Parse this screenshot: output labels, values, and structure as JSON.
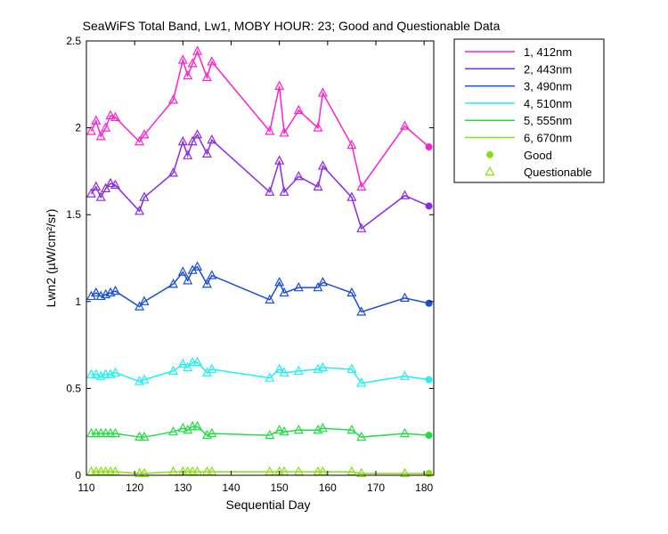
{
  "chart_data": {
    "type": "line",
    "title": "SeaWiFS Total Band, Lw1, MOBY HOUR: 23;  Good and Questionable Data",
    "xlabel": "Sequential Day",
    "ylabel": "Lwn2 (µW/cm²/sr)",
    "xlim": [
      110,
      182
    ],
    "ylim": [
      0,
      2.5
    ],
    "xticks": [
      "110",
      "120",
      "130",
      "140",
      "150",
      "160",
      "170",
      "180"
    ],
    "yticks": [
      "0",
      "0.5",
      "1",
      "1.5",
      "2",
      "2.5"
    ],
    "grid": false,
    "legend_position": "outside-top-right",
    "x": [
      111,
      112,
      113,
      114,
      115,
      116,
      121,
      122,
      128,
      130,
      131,
      132,
      133,
      135,
      136,
      148,
      150,
      151,
      154,
      158,
      159,
      165,
      167,
      176,
      181
    ],
    "series": [
      {
        "name": "1, 412nm",
        "color": "#ff22cc",
        "values": [
          1.98,
          2.04,
          1.95,
          2.0,
          2.07,
          2.06,
          1.92,
          1.96,
          2.16,
          2.39,
          2.3,
          2.37,
          2.44,
          2.29,
          2.38,
          1.98,
          2.24,
          1.97,
          2.1,
          2.0,
          2.2,
          1.9,
          1.66,
          2.01,
          1.89
        ]
      },
      {
        "name": "2, 443nm",
        "color": "#8a2be2",
        "values": [
          1.62,
          1.66,
          1.6,
          1.65,
          1.68,
          1.67,
          1.52,
          1.6,
          1.74,
          1.92,
          1.84,
          1.92,
          1.96,
          1.85,
          1.93,
          1.63,
          1.81,
          1.63,
          1.72,
          1.66,
          1.78,
          1.6,
          1.42,
          1.61,
          1.55
        ]
      },
      {
        "name": "3, 490nm",
        "color": "#1a4fd6",
        "values": [
          1.03,
          1.05,
          1.03,
          1.04,
          1.05,
          1.06,
          0.97,
          1.0,
          1.1,
          1.17,
          1.12,
          1.18,
          1.2,
          1.1,
          1.15,
          1.01,
          1.11,
          1.05,
          1.08,
          1.08,
          1.11,
          1.05,
          0.94,
          1.02,
          0.99
        ]
      },
      {
        "name": "4, 510nm",
        "color": "#22f0f0",
        "values": [
          0.58,
          0.58,
          0.57,
          0.58,
          0.58,
          0.59,
          0.54,
          0.55,
          0.6,
          0.64,
          0.62,
          0.65,
          0.65,
          0.59,
          0.61,
          0.56,
          0.61,
          0.59,
          0.6,
          0.61,
          0.62,
          0.61,
          0.53,
          0.57,
          0.55
        ]
      },
      {
        "name": "5, 555nm",
        "color": "#22dd44",
        "values": [
          0.24,
          0.24,
          0.24,
          0.24,
          0.24,
          0.24,
          0.22,
          0.22,
          0.25,
          0.27,
          0.26,
          0.28,
          0.28,
          0.23,
          0.24,
          0.23,
          0.26,
          0.25,
          0.26,
          0.26,
          0.27,
          0.26,
          0.22,
          0.24,
          0.23
        ]
      },
      {
        "name": "6, 670nm",
        "color": "#88e011",
        "values": [
          0.02,
          0.02,
          0.02,
          0.02,
          0.02,
          0.02,
          0.01,
          0.01,
          0.02,
          0.02,
          0.02,
          0.02,
          0.02,
          0.02,
          0.02,
          0.02,
          0.02,
          0.02,
          0.02,
          0.02,
          0.02,
          0.02,
          0.01,
          0.01,
          0.01
        ]
      }
    ],
    "quality": [
      "Questionable",
      "Questionable",
      "Questionable",
      "Questionable",
      "Questionable",
      "Questionable",
      "Questionable",
      "Questionable",
      "Questionable",
      "Questionable",
      "Questionable",
      "Questionable",
      "Questionable",
      "Questionable",
      "Questionable",
      "Questionable",
      "Questionable",
      "Questionable",
      "Questionable",
      "Questionable",
      "Questionable",
      "Questionable",
      "Questionable",
      "Questionable",
      "Good"
    ],
    "marker_legend": [
      {
        "name": "Good",
        "marker": "circle",
        "color": "#88e011"
      },
      {
        "name": "Questionable",
        "marker": "triangle",
        "color": "#88e011"
      }
    ]
  }
}
